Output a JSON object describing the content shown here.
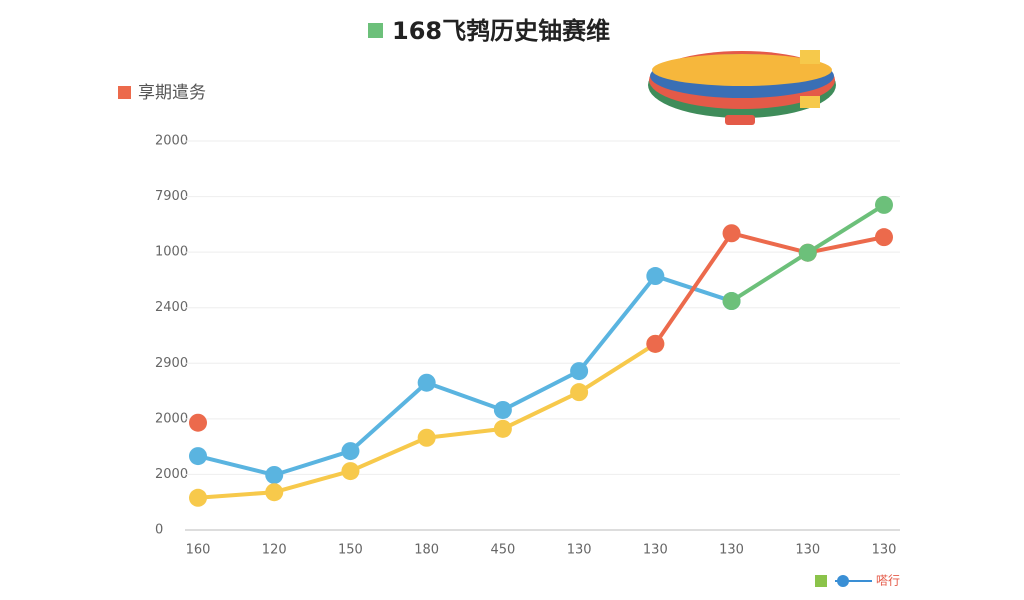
{
  "chart_data": {
    "type": "line",
    "title": "168飞鹁历史铀赛维",
    "legend_label": "享期遣务",
    "footer_label": "嗒行",
    "categories": [
      "160",
      "120",
      "150",
      "180",
      "450",
      "130",
      "130",
      "130",
      "130",
      "130"
    ],
    "ylim": [
      0,
      7
    ],
    "yticks": [
      {
        "value": 0,
        "label": "0"
      },
      {
        "value": 1,
        "label": "2000"
      },
      {
        "value": 2,
        "label": "2000"
      },
      {
        "value": 3,
        "label": "2900"
      },
      {
        "value": 4,
        "label": "2400"
      },
      {
        "value": 5,
        "label": "1000"
      },
      {
        "value": 6,
        "label": "7900"
      },
      {
        "value": 7,
        "label": "2000"
      }
    ],
    "grid": true,
    "series": [
      {
        "color": "#5ab4e0",
        "values": [
          1.33,
          0.99,
          1.42,
          2.65,
          2.16,
          2.86,
          4.57,
          4.12,
          null,
          null
        ]
      },
      {
        "color": "#f7c94b",
        "values": [
          0.58,
          0.68,
          1.06,
          1.66,
          1.82,
          2.48,
          3.35,
          null,
          null,
          null
        ]
      },
      {
        "color": "#ec6a4c",
        "values": [
          1.93,
          null,
          null,
          null,
          null,
          null,
          3.35,
          5.34,
          4.99,
          5.27
        ]
      },
      {
        "color": "#6cc07a",
        "values": [
          null,
          null,
          null,
          null,
          null,
          null,
          null,
          4.12,
          4.99,
          5.85
        ]
      }
    ]
  }
}
